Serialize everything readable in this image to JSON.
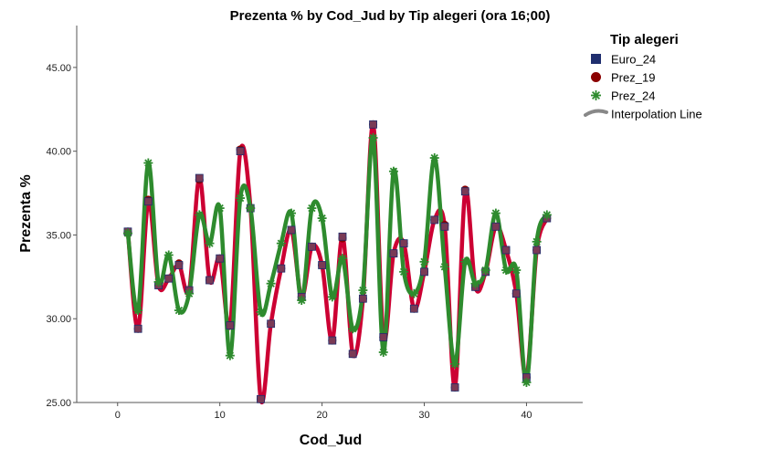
{
  "chart_data": {
    "type": "line",
    "title": "Prezenta % by Cod_Jud by Tip alegeri (ora 16;00)",
    "xlabel": "Cod_Jud",
    "ylabel": "Prezenta %",
    "xlim": [
      -4,
      45.5
    ],
    "ylim": [
      25,
      47.5
    ],
    "x_ticks": [
      0,
      10,
      20,
      30,
      40
    ],
    "x_tick_labels": [
      "0",
      "10",
      "20",
      "30",
      "40"
    ],
    "y_ticks": [
      25,
      30,
      35,
      40,
      45
    ],
    "y_tick_labels": [
      "25.00",
      "30.00",
      "35.00",
      "40.00",
      "45.00"
    ],
    "legend": {
      "title": "Tip alegeri",
      "placement": "right",
      "items": [
        {
          "label": "Euro_24",
          "marker": "square",
          "color": "#1f2e6e"
        },
        {
          "label": "Prez_19",
          "marker": "circle",
          "color": "#8b0000"
        },
        {
          "label": "Prez_24",
          "marker": "star",
          "color": "#2e8b2e"
        },
        {
          "label": "Interpolation Line",
          "marker": "line",
          "color": "#888888"
        }
      ]
    },
    "colors": {
      "euro_24": "#1f2e6e",
      "prez_19": "#8b0000",
      "prez_24": "#2e8b2e",
      "euro_line": "#cc0033",
      "prez24_line": "#2e8b2e"
    },
    "x": [
      1,
      2,
      3,
      4,
      5,
      6,
      7,
      8,
      9,
      10,
      11,
      12,
      13,
      14,
      15,
      16,
      17,
      18,
      19,
      20,
      21,
      22,
      23,
      24,
      25,
      26,
      27,
      28,
      29,
      30,
      31,
      32,
      33,
      34,
      35,
      36,
      37,
      38,
      39,
      40,
      41,
      42
    ],
    "series": [
      {
        "name": "Euro_24",
        "values": [
          35.2,
          29.4,
          37.0,
          32.0,
          32.4,
          33.2,
          31.7,
          38.4,
          32.3,
          33.6,
          29.6,
          40.0,
          36.6,
          25.2,
          29.7,
          33.0,
          35.3,
          31.3,
          34.3,
          33.2,
          28.7,
          34.9,
          27.9,
          31.2,
          41.6,
          28.9,
          33.9,
          34.5,
          30.6,
          32.8,
          35.9,
          35.5,
          25.9,
          37.6,
          31.9,
          32.8,
          35.5,
          34.1,
          31.5,
          26.5,
          34.1,
          36.0
        ]
      },
      {
        "name": "Prez_19",
        "values": [
          35.2,
          29.4,
          37.1,
          32.0,
          32.4,
          33.3,
          31.7,
          38.3,
          32.3,
          33.6,
          29.6,
          40.1,
          36.6,
          25.2,
          29.7,
          33.0,
          35.3,
          31.3,
          34.3,
          33.2,
          28.7,
          34.8,
          27.9,
          31.2,
          41.6,
          28.9,
          33.9,
          34.5,
          30.6,
          32.8,
          35.9,
          35.6,
          25.9,
          37.7,
          31.9,
          32.8,
          35.5,
          34.1,
          31.5,
          26.5,
          34.1,
          36.0
        ]
      },
      {
        "name": "Prez_24",
        "values": [
          35.1,
          30.5,
          39.3,
          32.2,
          33.8,
          30.5,
          31.5,
          36.2,
          34.5,
          36.6,
          27.8,
          37.2,
          36.6,
          30.4,
          32.1,
          34.5,
          36.3,
          31.1,
          36.6,
          36.0,
          31.3,
          33.6,
          29.4,
          31.7,
          40.8,
          28.0,
          38.8,
          32.8,
          31.5,
          33.4,
          39.6,
          33.1,
          27.3,
          33.4,
          32.1,
          32.9,
          36.3,
          32.9,
          32.9,
          26.2,
          34.6,
          36.2
        ]
      }
    ]
  }
}
